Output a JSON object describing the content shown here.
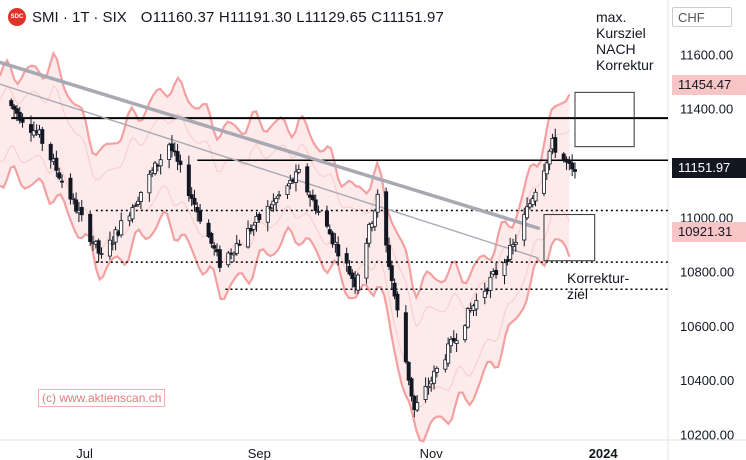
{
  "header": {
    "logo_text": "SDC",
    "symbol": "SMI · 1T · SIX",
    "ohlc": "O11160.37  H11191.30  L11129.65  C11151.97"
  },
  "currency_label": "CHF",
  "annotations": {
    "target_label": "max.\nKursziel\nNACH\nKorrektur",
    "correction_label": "Korrektur-\nziel"
  },
  "price_badges": {
    "upper": "11454.47",
    "current": "11151.97",
    "lower": "10921.31"
  },
  "watermark": "(c) www.aktienscan.ch",
  "colors": {
    "up_candle": "#ffffff",
    "down_candle": "#131722",
    "band_line": "#f5a0a0",
    "band_fill": "#fde6e6",
    "trendline": "#a9a9b4",
    "horizontal_line": "#000000",
    "badge_red": "#f7c5c5",
    "current_badge": "#131722"
  },
  "chart_data": {
    "type": "candlestick",
    "yaxis": {
      "ylim": [
        10180,
        11800
      ],
      "ticks": [
        "11600.00",
        "11400.00",
        "11200.00",
        "11000.00",
        "10800.00",
        "10600.00",
        "10400.00",
        "10200.00"
      ],
      "tick_values": [
        11600,
        11400,
        11200,
        11000,
        10800,
        10600,
        10400,
        10200
      ]
    },
    "xaxis": {
      "labels": [
        "Jul",
        "Sep",
        "Nov",
        "2024"
      ],
      "label_dates": [
        "2023-07-01",
        "2023-09-01",
        "2023-11-01",
        "2024-01-01"
      ],
      "range": [
        "2023-06-01",
        "2024-01-24"
      ]
    },
    "levels": {
      "resistance": 11365,
      "upper_line": 11210,
      "support_dotted_1": 11025,
      "support_dotted_2": 10835,
      "support_dotted_3": 10735
    },
    "trendlines": [
      {
        "start": [
          "2023-06-01",
          11570
        ],
        "end": [
          "2023-12-09",
          10960
        ],
        "style": "thick"
      },
      {
        "start": [
          "2023-06-01",
          11490
        ],
        "end": [
          "2023-12-09",
          10850
        ],
        "style": "thin"
      }
    ],
    "target_boxes": [
      {
        "from": "2023-12-22",
        "to": "2024-01-12",
        "high": 11460,
        "low": 11260
      },
      {
        "from": "2023-12-11",
        "to": "2023-12-29",
        "high": 11010,
        "low": 10840
      }
    ],
    "candle_summary": [
      {
        "date": "2023-06-15",
        "close": 11300
      },
      {
        "date": "2023-07-07",
        "close": 10850
      },
      {
        "date": "2023-07-31",
        "close": 11270
      },
      {
        "date": "2023-08-18",
        "close": 10830
      },
      {
        "date": "2023-09-15",
        "close": 11160
      },
      {
        "date": "2023-10-05",
        "close": 10760
      },
      {
        "date": "2023-10-13",
        "close": 11070
      },
      {
        "date": "2023-10-26",
        "close": 10290
      },
      {
        "date": "2023-11-15",
        "close": 10660
      },
      {
        "date": "2023-11-30",
        "close": 10890
      },
      {
        "date": "2023-12-14",
        "close": 11270
      },
      {
        "date": "2023-12-22",
        "close": 11152
      }
    ],
    "band": [
      {
        "date": "2023-06-01",
        "upper": 11520,
        "lower": 11150
      },
      {
        "date": "2023-06-20",
        "upper": 11560,
        "lower": 11100
      },
      {
        "date": "2023-07-07",
        "upper": 11230,
        "lower": 10800
      },
      {
        "date": "2023-07-31",
        "upper": 11500,
        "lower": 11000
      },
      {
        "date": "2023-08-18",
        "upper": 11330,
        "lower": 10720
      },
      {
        "date": "2023-09-15",
        "upper": 11350,
        "lower": 10950
      },
      {
        "date": "2023-10-05",
        "upper": 11100,
        "lower": 10700
      },
      {
        "date": "2023-10-13",
        "upper": 11150,
        "lower": 10780
      },
      {
        "date": "2023-10-26",
        "upper": 10760,
        "lower": 10200
      },
      {
        "date": "2023-11-15",
        "upper": 10800,
        "lower": 10330
      },
      {
        "date": "2023-11-30",
        "upper": 10980,
        "lower": 10600
      },
      {
        "date": "2023-12-14",
        "upper": 11380,
        "lower": 10920
      },
      {
        "date": "2023-12-20",
        "upper": 11470,
        "lower": 10880
      }
    ]
  }
}
